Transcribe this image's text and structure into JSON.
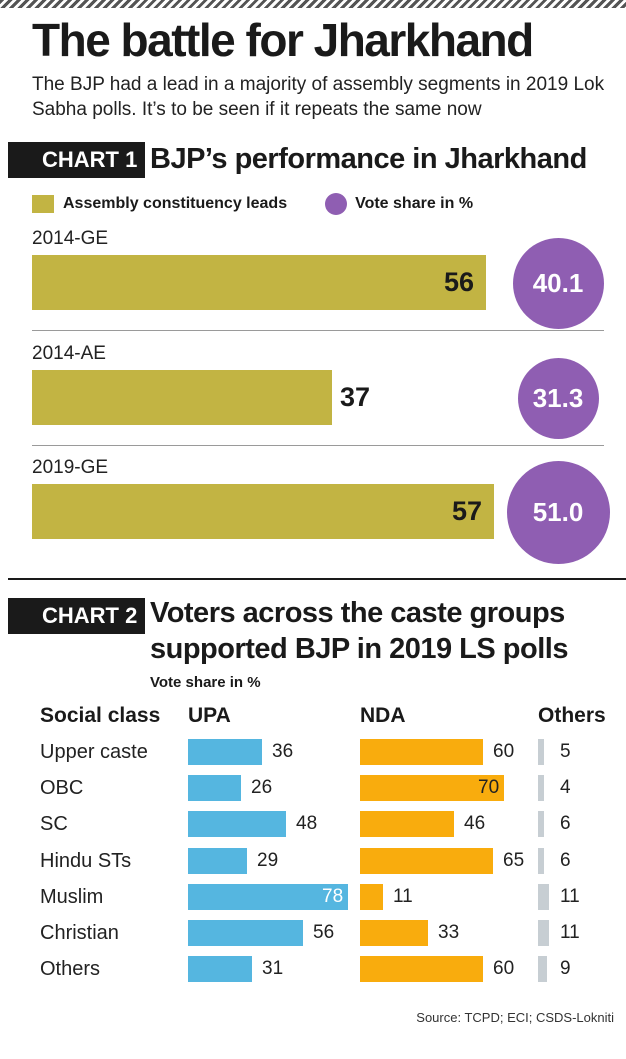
{
  "title": "The battle for Jharkhand",
  "subtitle": "The BJP had a lead in a majority of assembly segments in 2019 Lok Sabha polls. It’s to be seen if it repeats the same now",
  "source": "Source: TCPD; ECI; CSDS-Lokniti",
  "colors": {
    "leads": "#c2b443",
    "vote_share": "#8f5eb2",
    "upa": "#55b6e0",
    "nda": "#f9ac0d",
    "others": "#c7ced3"
  },
  "chart_data": [
    {
      "type": "bar",
      "tag": "CHART 1",
      "title": "BJP’s performance in Jharkhand",
      "legend": [
        "Assembly constituency leads",
        "Vote share in %"
      ],
      "categories": [
        "2014-GE",
        "2014-AE",
        "2019-GE"
      ],
      "series": [
        {
          "name": "Assembly constituency leads",
          "values": [
            56,
            37,
            57
          ]
        },
        {
          "name": "Vote share in %",
          "values": [
            "40.1",
            "31.3",
            "51.0"
          ]
        }
      ]
    },
    {
      "type": "bar",
      "tag": "CHART 2",
      "title_lines": [
        "Voters across the caste groups",
        "supported BJP in 2019 LS polls"
      ],
      "subtitle": "Vote share in %",
      "category_header": "Social class",
      "categories": [
        "Upper caste",
        "OBC",
        "SC",
        "Hindu STs",
        "Muslim",
        "Christian",
        "Others"
      ],
      "series": [
        {
          "name": "UPA",
          "values": [
            36,
            26,
            48,
            29,
            78,
            56,
            31
          ]
        },
        {
          "name": "NDA",
          "values": [
            60,
            70,
            46,
            65,
            11,
            33,
            60
          ]
        },
        {
          "name": "Others",
          "values": [
            5,
            4,
            6,
            6,
            11,
            11,
            9
          ]
        }
      ]
    }
  ]
}
